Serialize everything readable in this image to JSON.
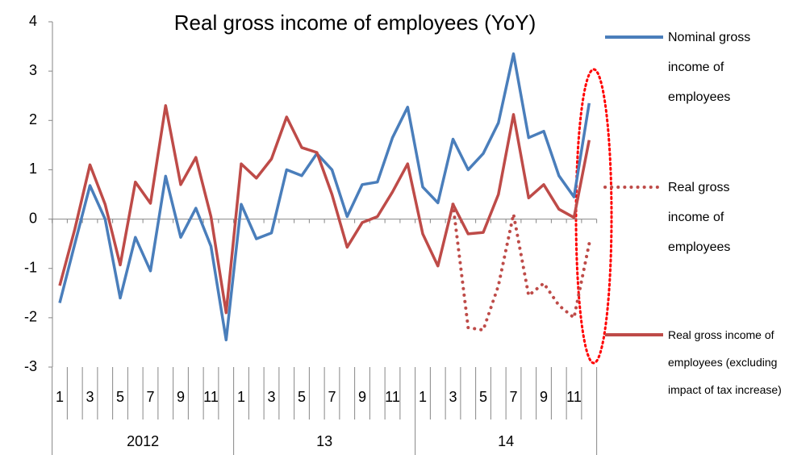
{
  "chart_data": {
    "type": "line",
    "title": "Real gross income of employees (YoY)",
    "categories": [
      "1",
      null,
      "3",
      null,
      "5",
      null,
      "7",
      null,
      "9",
      null,
      "11",
      null,
      "1",
      null,
      "3",
      null,
      "5",
      null,
      "7",
      null,
      "9",
      null,
      "11",
      null,
      "1",
      null,
      "3",
      null,
      "5",
      null,
      "7",
      null,
      "9",
      null,
      "11",
      null
    ],
    "year_labels": [
      "2012",
      "13",
      "14"
    ],
    "ylim": [
      -3,
      4
    ],
    "yticks": [
      -3,
      -2,
      -1,
      0,
      1,
      2,
      3,
      4
    ],
    "series": [
      {
        "name": "Nominal gross income of employees",
        "color": "#4a7ebb",
        "dash": false,
        "values": [
          -1.7,
          -0.5,
          0.68,
          0,
          -1.6,
          -0.37,
          -1.05,
          0.87,
          -0.37,
          0.22,
          -0.55,
          -2.45,
          0.3,
          -0.4,
          -0.28,
          1.0,
          0.88,
          1.33,
          1.0,
          0.05,
          0.7,
          0.75,
          1.65,
          2.27,
          0.65,
          0.33,
          1.62,
          1.0,
          1.33,
          1.95,
          3.35,
          1.65,
          1.78,
          0.88,
          0.45,
          2.35
        ]
      },
      {
        "name": "Real gross income of employees",
        "color": "#be4b48",
        "dash": true,
        "values": [
          null,
          null,
          null,
          null,
          null,
          null,
          null,
          null,
          null,
          null,
          null,
          null,
          null,
          null,
          null,
          null,
          null,
          null,
          null,
          null,
          null,
          null,
          null,
          null,
          null,
          null,
          0.3,
          -2.2,
          -2.25,
          -1.35,
          0.1,
          -1.55,
          -1.3,
          -1.75,
          -2.0,
          -0.5
        ]
      },
      {
        "name": "Real gross income of employees (excluding impact of tax increase)",
        "color": "#be4b48",
        "dash": false,
        "values": [
          -1.35,
          -0.2,
          1.1,
          0.3,
          -0.93,
          0.75,
          0.32,
          2.3,
          0.7,
          1.25,
          0.05,
          -1.9,
          1.12,
          0.83,
          1.22,
          2.07,
          1.45,
          1.35,
          0.5,
          -0.57,
          -0.07,
          0.05,
          0.55,
          1.12,
          -0.3,
          -0.95,
          0.3,
          -0.3,
          -0.27,
          0.5,
          2.12,
          0.43,
          0.7,
          0.2,
          0.03,
          1.6
        ]
      }
    ]
  }
}
